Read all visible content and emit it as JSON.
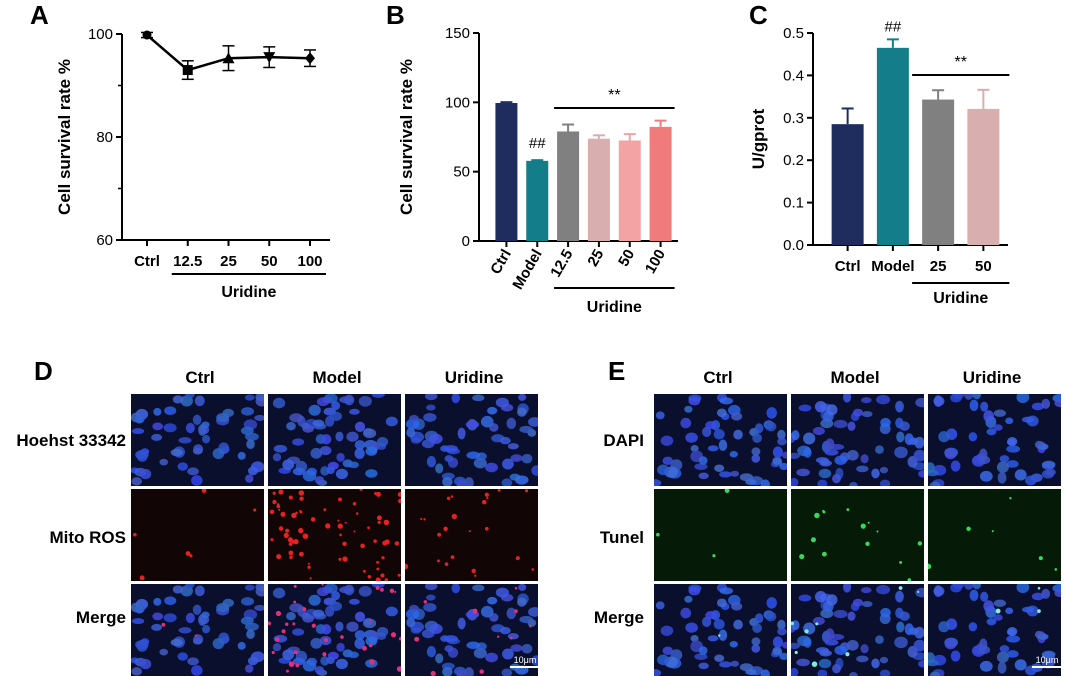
{
  "panel_letters": [
    "A",
    "B",
    "C",
    "D",
    "E"
  ],
  "chart_data": [
    {
      "panel": "A",
      "type": "line",
      "categories": [
        "Ctrl",
        "12.5",
        "25",
        "50",
        "100"
      ],
      "values": [
        99.8,
        93.0,
        95.3,
        95.5,
        95.3
      ],
      "errors": [
        0.5,
        1.8,
        2.4,
        2.0,
        1.6
      ],
      "markers": [
        "circle",
        "square",
        "triangle",
        "triangle-down",
        "diamond"
      ],
      "ylabel": "Cell survival rate %",
      "ylim": [
        60,
        100
      ],
      "yticks": [
        60,
        80,
        100
      ],
      "group_label": "Uridine",
      "color": "#000000"
    },
    {
      "panel": "B",
      "type": "bar",
      "categories": [
        "Ctrl",
        "Model",
        "12.5",
        "25",
        "50",
        "100"
      ],
      "values": [
        99.5,
        57.8,
        79.0,
        73.8,
        72.5,
        82.3
      ],
      "errors": [
        0.6,
        0.5,
        5.0,
        2.4,
        4.6,
        4.5
      ],
      "colors": [
        "#1f2d5e",
        "#147d8a",
        "#808080",
        "#d8aeae",
        "#f3a3a3",
        "#ef7b7b"
      ],
      "ylabel": "Cell survival rate %",
      "ylim": [
        0,
        150
      ],
      "yticks": [
        0,
        50,
        100,
        150
      ],
      "group_label": "Uridine",
      "annotations": [
        "##",
        "**"
      ]
    },
    {
      "panel": "C",
      "type": "bar",
      "categories": [
        "Ctrl",
        "Model",
        "25",
        "50"
      ],
      "values": [
        0.285,
        0.465,
        0.343,
        0.321
      ],
      "errors": [
        0.037,
        0.02,
        0.022,
        0.045
      ],
      "colors": [
        "#1f2d5e",
        "#147d8a",
        "#808080",
        "#d8aeae"
      ],
      "ylabel": "U/gprot",
      "ylim": [
        0,
        0.5
      ],
      "yticks": [
        "0.0",
        "0.1",
        "0.2",
        "0.3",
        "0.4",
        "0.5"
      ],
      "group_label": "Uridine",
      "annotations": [
        "##",
        "**"
      ]
    }
  ],
  "panelD": {
    "columns": [
      "Ctrl",
      "Model",
      "Uridine"
    ],
    "rows": [
      "Hoehst 33342",
      "Mito ROS",
      "Merge"
    ],
    "scale_bar": "10μm"
  },
  "panelE": {
    "columns": [
      "Ctrl",
      "Model",
      "Uridine"
    ],
    "rows": [
      "DAPI",
      "Tunel",
      "Merge"
    ],
    "scale_bar": "10μm"
  }
}
